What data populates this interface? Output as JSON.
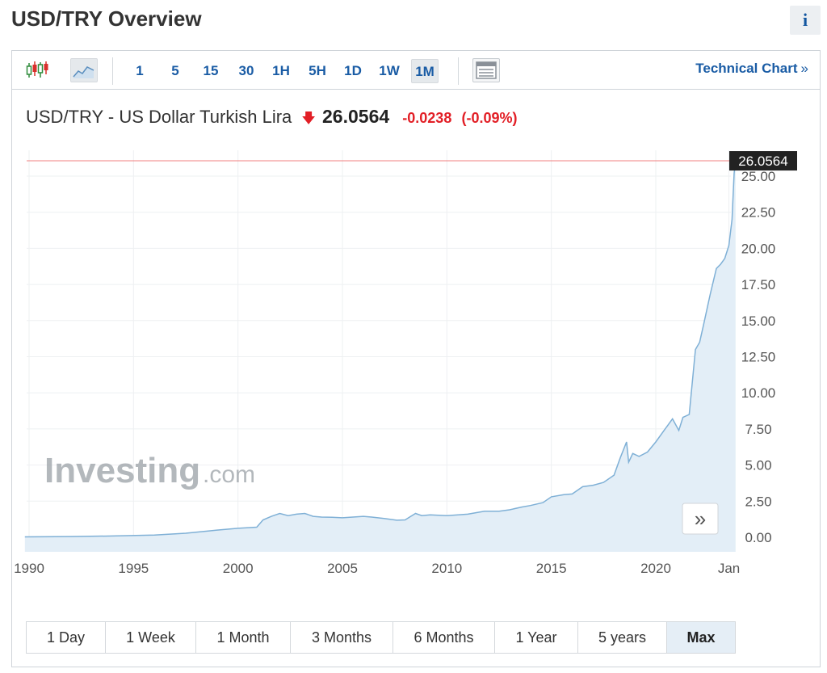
{
  "page_title": "USD/TRY Overview",
  "info_label": "i",
  "toolbar": {
    "intervals": [
      "1",
      "5",
      "15",
      "30",
      "1H",
      "5H",
      "1D",
      "1W",
      "1M"
    ],
    "active_interval": "1M",
    "technical_chart": "Technical Chart",
    "technical_chart_chevron": "»"
  },
  "quote": {
    "name": "USD/TRY - US Dollar Turkish Lira",
    "last": "26.0564",
    "change": "-0.0238",
    "change_pct": "(-0.09%)",
    "direction": "down"
  },
  "watermark": {
    "brand": "Investing",
    "suffix": ".com"
  },
  "scroll_button": "»",
  "ranges": [
    "1 Day",
    "1 Week",
    "1 Month",
    "3 Months",
    "6 Months",
    "1 Year",
    "5 years",
    "Max"
  ],
  "active_range": "Max",
  "colors": {
    "line": "#7fb0d6",
    "area": "#e3eef7",
    "price_line": "#f08080",
    "price_label_bg": "#222222",
    "negative": "#e21f26",
    "link": "#1a5ca5"
  },
  "chart_data": {
    "type": "area",
    "title": "USD/TRY - US Dollar Turkish Lira",
    "x_tick_labels": [
      "1990",
      "1995",
      "2000",
      "2005",
      "2010",
      "2015",
      "2020",
      "Jan"
    ],
    "y_tick_labels": [
      "0.00",
      "2.50",
      "5.00",
      "7.50",
      "10.00",
      "12.50",
      "15.00",
      "17.50",
      "20.00",
      "22.50",
      "25.00"
    ],
    "ylim": [
      0,
      25
    ],
    "last_price_label": "26.0564",
    "grid": true,
    "series": [
      {
        "x": [
          1989.8,
          1992,
          1994,
          1996,
          1997.5,
          1999,
          2000,
          2000.9,
          2001.2,
          2001.6,
          2002,
          2002.4,
          2002.8,
          2003.2,
          2003.6,
          2004,
          2004.5,
          2005,
          2005.5,
          2006,
          2006.4,
          2007,
          2007.6,
          2008,
          2008.5,
          2008.8,
          2009.2,
          2010,
          2011,
          2011.8,
          2012.5,
          2013,
          2013.6,
          2014,
          2014.6,
          2015,
          2015.6,
          2016,
          2016.5,
          2017,
          2017.5,
          2018,
          2018.3,
          2018.6,
          2018.7,
          2018.9,
          2019.2,
          2019.6,
          2020,
          2020.4,
          2020.8,
          2021.1,
          2021.3,
          2021.6,
          2021.9,
          2022.1,
          2022.3,
          2022.6,
          2022.9,
          2023.1,
          2023.3,
          2023.5,
          2023.65,
          2023.75,
          2023.82
        ],
        "values": [
          0.03,
          0.05,
          0.09,
          0.15,
          0.28,
          0.5,
          0.62,
          0.7,
          1.2,
          1.45,
          1.65,
          1.5,
          1.6,
          1.65,
          1.45,
          1.4,
          1.38,
          1.35,
          1.4,
          1.45,
          1.4,
          1.3,
          1.18,
          1.2,
          1.65,
          1.5,
          1.55,
          1.5,
          1.6,
          1.8,
          1.8,
          1.9,
          2.1,
          2.2,
          2.4,
          2.8,
          2.95,
          3.0,
          3.5,
          3.6,
          3.8,
          4.3,
          5.5,
          6.6,
          5.2,
          5.8,
          5.6,
          5.9,
          6.6,
          7.4,
          8.2,
          7.4,
          8.3,
          8.5,
          13.0,
          13.5,
          14.8,
          16.8,
          18.6,
          18.9,
          19.3,
          20.2,
          22.0,
          25.2,
          26.06
        ]
      }
    ]
  }
}
